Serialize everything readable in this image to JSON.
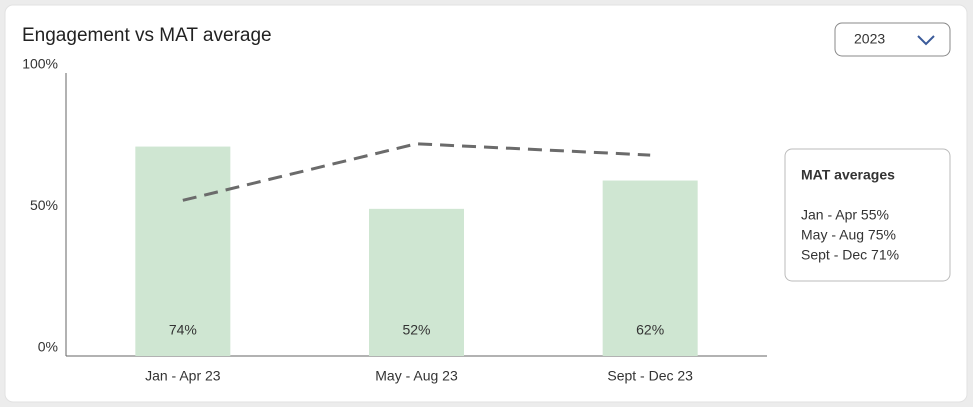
{
  "chart_data": {
    "type": "bar",
    "title": "Engagement vs MAT average",
    "dropdown": "2023",
    "categories": [
      "Jan - Apr 23",
      "May - Aug 23",
      "Sept - Dec 23"
    ],
    "values": [
      74,
      52,
      62
    ],
    "value_labels": [
      "74%",
      "52%",
      "62%"
    ],
    "color": "#cfe6d2",
    "line": {
      "name": "MAT averages",
      "color": "#6b6b6b",
      "dashed": true,
      "values": [
        55,
        75,
        71
      ],
      "value_labels": [
        "Jan - Apr 55%",
        "May - Aug 75%",
        "Sept - Dec 71%"
      ]
    },
    "ylim": [
      0,
      100
    ],
    "yticks": [
      {
        "value": 0,
        "label": "0%"
      },
      {
        "value": 50,
        "label": "50%"
      },
      {
        "value": 100,
        "label": "100%"
      }
    ],
    "grid": false
  }
}
